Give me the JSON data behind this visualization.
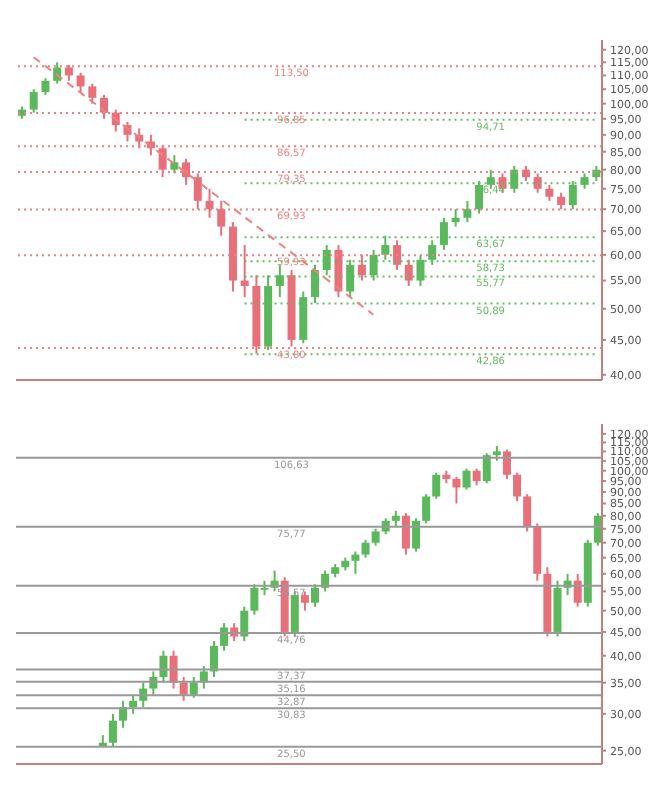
{
  "chart_data": [
    {
      "type": "candlestick",
      "categories": [
        null,
        null,
        null,
        null,
        null,
        null,
        null,
        null,
        null,
        null,
        null,
        null,
        null,
        null,
        null,
        null,
        null,
        null,
        null,
        null,
        null,
        null,
        null,
        null,
        null,
        null,
        null,
        null,
        null,
        null,
        null,
        null,
        null,
        null,
        null,
        null,
        null,
        null,
        null,
        null,
        null,
        null,
        null,
        null,
        null,
        null,
        null,
        null,
        null,
        null
      ],
      "ohlc": [
        [
          96,
          99,
          95,
          98
        ],
        [
          98,
          105,
          97,
          104
        ],
        [
          104,
          109,
          103,
          108
        ],
        [
          108,
          115,
          107,
          113
        ],
        [
          113,
          114,
          108,
          110
        ],
        [
          110,
          111,
          104,
          106
        ],
        [
          106,
          107,
          100,
          102
        ],
        [
          102,
          103,
          95,
          97
        ],
        [
          97,
          98,
          91,
          93
        ],
        [
          93,
          94,
          88,
          90
        ],
        [
          90,
          92,
          86,
          88
        ],
        [
          88,
          90,
          84,
          86
        ],
        [
          86,
          87,
          78,
          80
        ],
        [
          80,
          84,
          79,
          82
        ],
        [
          82,
          83,
          76,
          78
        ],
        [
          78,
          79,
          70,
          72
        ],
        [
          72,
          75,
          68,
          70
        ],
        [
          70,
          72,
          64,
          66
        ],
        [
          66,
          67,
          53,
          55
        ],
        [
          55,
          62,
          52,
          54
        ],
        [
          54,
          56,
          43,
          44
        ],
        [
          44,
          56,
          43.5,
          54
        ],
        [
          54,
          58,
          52,
          56
        ],
        [
          56,
          57,
          44,
          45
        ],
        [
          45,
          53,
          44.5,
          52
        ],
        [
          52,
          58,
          51,
          57
        ],
        [
          57,
          62,
          56,
          61
        ],
        [
          61,
          62,
          52,
          53
        ],
        [
          53,
          59,
          52,
          58
        ],
        [
          58,
          60,
          55,
          56
        ],
        [
          56,
          61,
          55,
          60
        ],
        [
          60,
          64,
          59,
          62
        ],
        [
          62,
          63,
          57,
          58
        ],
        [
          58,
          59,
          54,
          55
        ],
        [
          55,
          60,
          54,
          59
        ],
        [
          59,
          63,
          58,
          62
        ],
        [
          62,
          68,
          61,
          67
        ],
        [
          67,
          70,
          66,
          68
        ],
        [
          68,
          72,
          67,
          70
        ],
        [
          70,
          77,
          69,
          76
        ],
        [
          76,
          80,
          75,
          78
        ],
        [
          78,
          79,
          74,
          75
        ],
        [
          75,
          81,
          74,
          80
        ],
        [
          80,
          81,
          77,
          78
        ],
        [
          78,
          79,
          74,
          75
        ],
        [
          75,
          76,
          72,
          73
        ],
        [
          73,
          74,
          70,
          71
        ],
        [
          71,
          77,
          70,
          76
        ],
        [
          76,
          79,
          75,
          78
        ],
        [
          78,
          81,
          77,
          80
        ]
      ],
      "series": [
        {
          "type": "line",
          "color": "#f08080",
          "line_style": "dashed",
          "values": [
            null,
            117,
            null,
            null,
            null,
            null,
            null,
            null,
            null,
            null,
            null,
            null,
            null,
            null,
            null,
            null,
            null,
            null,
            null,
            null,
            null,
            null,
            null,
            null,
            null,
            null,
            null,
            null,
            null,
            null,
            49,
            null,
            null,
            null,
            null,
            null,
            null,
            null,
            null,
            null,
            null,
            null,
            null,
            null,
            null,
            null,
            null,
            null,
            null,
            null
          ]
        }
      ],
      "log": true,
      "ylim": [
        39.3,
        124
      ],
      "yticks": [
        {
          "value": 40,
          "label": "40,00"
        },
        {
          "value": 45,
          "label": "45,00"
        },
        {
          "value": 50,
          "label": "50,00"
        },
        {
          "value": 55,
          "label": "55,00"
        },
        {
          "value": 60,
          "label": "60,00"
        },
        {
          "value": 65,
          "label": "65,00"
        },
        {
          "value": 70,
          "label": "70,00"
        },
        {
          "value": 75,
          "label": "75,00"
        },
        {
          "value": 80,
          "label": "80,00"
        },
        {
          "value": 85,
          "label": "85,00"
        },
        {
          "value": 90,
          "label": "90,00"
        },
        {
          "value": 95,
          "label": "95,00"
        },
        {
          "value": 100,
          "label": "100,00"
        },
        {
          "value": 105,
          "label": "105,00"
        },
        {
          "value": 110,
          "label": "110,00"
        },
        {
          "value": 115,
          "label": "115,00"
        },
        {
          "value": 120,
          "label": "120,00"
        }
      ],
      "ref_lines": [
        {
          "axis": "y",
          "value": 113.5,
          "label": "113,50",
          "color": "#f08080",
          "line_style": "dotted"
        },
        {
          "axis": "y",
          "value": 96.85,
          "label": "96,85",
          "color": "#f08080",
          "line_style": "dotted"
        },
        {
          "axis": "y",
          "value": 86.57,
          "label": "86,57",
          "color": "#f08080",
          "line_style": "dotted"
        },
        {
          "axis": "y",
          "value": 79.35,
          "label": "79,35",
          "color": "#f08080",
          "line_style": "dotted"
        },
        {
          "axis": "y",
          "value": 69.93,
          "label": "69,93",
          "color": "#f08080",
          "line_style": "dotted"
        },
        {
          "axis": "y",
          "value": 59.93,
          "label": "59,93",
          "color": "#f08080",
          "line_style": "dotted"
        },
        {
          "axis": "y",
          "value": 43.8,
          "label": "43,80",
          "color": "#f08080",
          "line_style": "dotted"
        },
        {
          "axis": "y",
          "value": 94.71,
          "label": "94,71",
          "color": "#66bb66",
          "line_style": "dotted"
        },
        {
          "axis": "y",
          "value": 76.44,
          "label": "76,44",
          "color": "#66bb66",
          "line_style": "dotted"
        },
        {
          "axis": "y",
          "value": 63.67,
          "label": "63,67",
          "color": "#66bb66",
          "line_style": "dotted"
        },
        {
          "axis": "y",
          "value": 58.73,
          "label": "58,73",
          "color": "#66bb66",
          "line_style": "dotted"
        },
        {
          "axis": "y",
          "value": 55.77,
          "label": "55,77",
          "color": "#66bb66",
          "line_style": "dotted"
        },
        {
          "axis": "y",
          "value": 50.89,
          "label": "50,89",
          "color": "#66bb66",
          "line_style": "dotted"
        },
        {
          "axis": "y",
          "value": 42.86,
          "label": "42,86",
          "color": "#66bb66",
          "line_style": "dotted"
        }
      ],
      "tick_labels": "y",
      "legend": false
    },
    {
      "type": "candlestick",
      "categories": [
        null,
        null,
        null,
        null,
        null,
        null,
        null,
        null,
        null,
        null,
        null,
        null,
        null,
        null,
        null,
        null,
        null,
        null,
        null,
        null,
        null,
        null,
        null,
        null,
        null,
        null,
        null,
        null,
        null,
        null,
        null,
        null,
        null,
        null,
        null,
        null,
        null,
        null,
        null,
        null,
        null,
        null,
        null,
        null,
        null,
        null,
        null,
        null,
        null,
        null,
        null,
        null,
        null,
        null,
        null,
        null,
        null,
        null
      ],
      "ohlc": [
        null,
        null,
        null,
        null,
        null,
        null,
        null,
        null,
        [
          25.5,
          27,
          25.5,
          26
        ],
        [
          26,
          30,
          25.5,
          29
        ],
        [
          29,
          32,
          28,
          31
        ],
        [
          31,
          33,
          30,
          32
        ],
        [
          32,
          35,
          31,
          34
        ],
        [
          34,
          37,
          33,
          36
        ],
        [
          36,
          41,
          35,
          40
        ],
        [
          40,
          41,
          34,
          35
        ],
        [
          35,
          36,
          32,
          33
        ],
        [
          33,
          36,
          32.5,
          35
        ],
        [
          35,
          38,
          34,
          37
        ],
        [
          37,
          43,
          36,
          42
        ],
        [
          42,
          47,
          41,
          46
        ],
        [
          46,
          47,
          43,
          44
        ],
        [
          44,
          51,
          43,
          50
        ],
        [
          50,
          57,
          49,
          56
        ],
        [
          56,
          58,
          54,
          56
        ],
        [
          56,
          61,
          55,
          58
        ],
        [
          58,
          59,
          44,
          45
        ],
        [
          45,
          55,
          44,
          54
        ],
        [
          54,
          55,
          50,
          52
        ],
        [
          52,
          57,
          51,
          56
        ],
        [
          56,
          61,
          55,
          60
        ],
        [
          60,
          63,
          59,
          62
        ],
        [
          62,
          65,
          61,
          64
        ],
        [
          64,
          67,
          60,
          66
        ],
        [
          66,
          71,
          65,
          70
        ],
        [
          70,
          75,
          69,
          74
        ],
        [
          74,
          79,
          73,
          78
        ],
        [
          78,
          82,
          76,
          80
        ],
        [
          80,
          81,
          66,
          68
        ],
        [
          68,
          79,
          67,
          78
        ],
        [
          78,
          89,
          77,
          88
        ],
        [
          88,
          99,
          87,
          98
        ],
        [
          98,
          100,
          94,
          96
        ],
        [
          96,
          97,
          85,
          92
        ],
        [
          92,
          101,
          91,
          100
        ],
        [
          100,
          101,
          93,
          95
        ],
        [
          95,
          109,
          94,
          108
        ],
        [
          108,
          113,
          105,
          110
        ],
        [
          110,
          111,
          96,
          98
        ],
        [
          98,
          99,
          86,
          88
        ],
        [
          88,
          89,
          74,
          76
        ],
        [
          76,
          77,
          58,
          60
        ],
        [
          60,
          62,
          44,
          45
        ],
        [
          45,
          58,
          44,
          56
        ],
        [
          56,
          60,
          54,
          58
        ],
        [
          58,
          60,
          51,
          52
        ],
        [
          52,
          71,
          51,
          70
        ],
        [
          70,
          81,
          69,
          80
        ]
      ],
      "log": true,
      "ylim": [
        23.4,
        126
      ],
      "yticks": [
        {
          "value": 25,
          "label": "25,00"
        },
        {
          "value": 30,
          "label": "30,00"
        },
        {
          "value": 35,
          "label": "35,00"
        },
        {
          "value": 40,
          "label": "40,00"
        },
        {
          "value": 45,
          "label": "45,00"
        },
        {
          "value": 50,
          "label": "50,00"
        },
        {
          "value": 55,
          "label": "55,00"
        },
        {
          "value": 60,
          "label": "60,00"
        },
        {
          "value": 65,
          "label": "65,00"
        },
        {
          "value": 70,
          "label": "70,00"
        },
        {
          "value": 75,
          "label": "75,00"
        },
        {
          "value": 80,
          "label": "80,00"
        },
        {
          "value": 85,
          "label": "85,00"
        },
        {
          "value": 90,
          "label": "90,00"
        },
        {
          "value": 95,
          "label": "95,00"
        },
        {
          "value": 100,
          "label": "100,00"
        },
        {
          "value": 105,
          "label": "105,00"
        },
        {
          "value": 110,
          "label": "110,00"
        },
        {
          "value": 115,
          "label": "115,00"
        },
        {
          "value": 120,
          "label": "120,00"
        }
      ],
      "ref_lines": [
        {
          "axis": "y",
          "value": 106.63,
          "label": "106,63",
          "color": "#999999",
          "line_style": "solid"
        },
        {
          "axis": "y",
          "value": 75.77,
          "label": "75,77",
          "color": "#999999",
          "line_style": "solid"
        },
        {
          "axis": "y",
          "value": 56.57,
          "label": "56,57",
          "color": "#999999",
          "line_style": "solid"
        },
        {
          "axis": "y",
          "value": 44.76,
          "label": "44,76",
          "color": "#999999",
          "line_style": "solid"
        },
        {
          "axis": "y",
          "value": 37.37,
          "label": "37,37",
          "color": "#999999",
          "line_style": "solid"
        },
        {
          "axis": "y",
          "value": 35.16,
          "label": "35,16",
          "color": "#999999",
          "line_style": "solid"
        },
        {
          "axis": "y",
          "value": 32.87,
          "label": "32,87",
          "color": "#999999",
          "line_style": "solid"
        },
        {
          "axis": "y",
          "value": 30.83,
          "label": "30,83",
          "color": "#999999",
          "line_style": "solid"
        },
        {
          "axis": "y",
          "value": 25.5,
          "label": "25,50",
          "color": "#999999",
          "line_style": "solid"
        }
      ],
      "tick_labels": "y",
      "legend": false
    }
  ]
}
